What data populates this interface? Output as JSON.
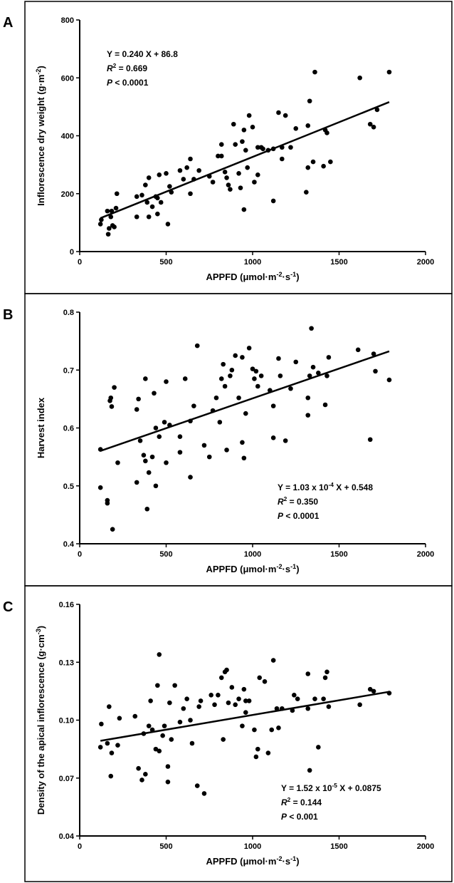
{
  "chart_data": [
    {
      "type": "scatter",
      "panel_label": "A",
      "xlabel": [
        {
          "t": "APPFD (μmol·m"
        },
        {
          "t": "-2",
          "sup": true
        },
        {
          "t": "·s"
        },
        {
          "t": "-1",
          "sup": true
        },
        {
          "t": ")"
        }
      ],
      "ylabel": [
        {
          "t": "Inflorescence dry weight (g·m"
        },
        {
          "t": "-2",
          "sup": true
        },
        {
          "t": ")"
        }
      ],
      "annotations": [
        [
          {
            "t": "Y = 0.240 X + 86.8"
          }
        ],
        [
          {
            "t": "R",
            "italic": true
          },
          {
            "t": "2",
            "sup": true
          },
          {
            "t": " = 0.669"
          }
        ],
        [
          {
            "t": "P",
            "italic": true
          },
          {
            "t": " < 0.0001"
          }
        ]
      ],
      "xlim": [
        0,
        2000
      ],
      "xticks": [
        0,
        500,
        1000,
        1500,
        2000
      ],
      "ylim": [
        0,
        800
      ],
      "yticks": [
        0,
        200,
        400,
        600,
        800
      ],
      "color": "#000000",
      "x": [
        120,
        125,
        160,
        165,
        170,
        180,
        185,
        190,
        200,
        210,
        215,
        330,
        330,
        360,
        380,
        390,
        400,
        400,
        420,
        440,
        450,
        450,
        460,
        470,
        500,
        510,
        520,
        530,
        580,
        600,
        620,
        640,
        640,
        660,
        690,
        750,
        770,
        800,
        820,
        820,
        840,
        850,
        860,
        870,
        890,
        900,
        920,
        930,
        940,
        950,
        950,
        960,
        970,
        980,
        1000,
        1010,
        1030,
        1030,
        1050,
        1060,
        1090,
        1120,
        1120,
        1150,
        1170,
        1170,
        1190,
        1220,
        1250,
        1310,
        1320,
        1320,
        1330,
        1350,
        1360,
        1410,
        1420,
        1430,
        1450,
        1620,
        1680,
        1700,
        1720,
        1790
      ],
      "values": [
        95,
        110,
        140,
        60,
        80,
        120,
        140,
        90,
        85,
        150,
        200,
        190,
        120,
        195,
        230,
        170,
        255,
        120,
        155,
        190,
        130,
        185,
        265,
        170,
        270,
        95,
        225,
        205,
        280,
        250,
        290,
        200,
        320,
        250,
        280,
        260,
        240,
        330,
        330,
        370,
        275,
        255,
        230,
        215,
        440,
        370,
        270,
        220,
        380,
        145,
        420,
        350,
        290,
        470,
        430,
        240,
        265,
        360,
        360,
        355,
        350,
        175,
        355,
        480,
        320,
        360,
        470,
        360,
        425,
        205,
        435,
        290,
        520,
        310,
        620,
        295,
        420,
        410,
        310,
        600,
        440,
        430,
        490,
        620
      ],
      "trendline": {
        "x": [
          120,
          1790
        ],
        "values": [
          115.6,
          516.4
        ]
      }
    },
    {
      "type": "scatter",
      "panel_label": "B",
      "xlabel": [
        {
          "t": "APPFD (μmol·m"
        },
        {
          "t": "-2",
          "sup": true
        },
        {
          "t": "·s"
        },
        {
          "t": "-1",
          "sup": true
        },
        {
          "t": ")"
        }
      ],
      "ylabel": [
        {
          "t": "Harvest index"
        }
      ],
      "annotations": [
        [
          {
            "t": "Y = 1.03 x 10"
          },
          {
            "t": "-4",
            "sup": true
          },
          {
            "t": " X + 0.548"
          }
        ],
        [
          {
            "t": "R",
            "italic": true
          },
          {
            "t": "2",
            "sup": true
          },
          {
            "t": " = 0.350"
          }
        ],
        [
          {
            "t": "P",
            "italic": true
          },
          {
            "t": " < 0.0001"
          }
        ]
      ],
      "xlim": [
        0,
        2000
      ],
      "xticks": [
        0,
        500,
        1000,
        1500,
        2000
      ],
      "ylim": [
        0.4,
        0.8
      ],
      "yticks": [
        0.4,
        0.5,
        0.6,
        0.7,
        0.8
      ],
      "color": "#000000",
      "x": [
        120,
        120,
        160,
        160,
        175,
        180,
        185,
        190,
        200,
        220,
        330,
        330,
        340,
        350,
        370,
        380,
        380,
        390,
        400,
        420,
        430,
        440,
        440,
        460,
        490,
        500,
        500,
        520,
        580,
        580,
        610,
        640,
        640,
        660,
        680,
        720,
        750,
        770,
        790,
        810,
        820,
        830,
        840,
        850,
        870,
        880,
        900,
        920,
        940,
        940,
        950,
        960,
        980,
        1000,
        1010,
        1020,
        1030,
        1050,
        1100,
        1120,
        1120,
        1150,
        1160,
        1190,
        1220,
        1250,
        1320,
        1320,
        1330,
        1340,
        1350,
        1380,
        1420,
        1430,
        1440,
        1610,
        1680,
        1700,
        1710,
        1790
      ],
      "values": [
        0.563,
        0.497,
        0.475,
        0.47,
        0.647,
        0.652,
        0.637,
        0.425,
        0.67,
        0.54,
        0.632,
        0.506,
        0.65,
        0.578,
        0.553,
        0.543,
        0.685,
        0.46,
        0.523,
        0.55,
        0.66,
        0.5,
        0.6,
        0.585,
        0.61,
        0.68,
        0.54,
        0.605,
        0.558,
        0.585,
        0.685,
        0.612,
        0.515,
        0.638,
        0.742,
        0.57,
        0.55,
        0.63,
        0.652,
        0.61,
        0.685,
        0.71,
        0.672,
        0.562,
        0.69,
        0.7,
        0.725,
        0.652,
        0.722,
        0.575,
        0.548,
        0.625,
        0.738,
        0.702,
        0.685,
        0.698,
        0.672,
        0.69,
        0.665,
        0.638,
        0.583,
        0.72,
        0.69,
        0.578,
        0.668,
        0.714,
        0.652,
        0.622,
        0.69,
        0.772,
        0.705,
        0.695,
        0.64,
        0.69,
        0.722,
        0.735,
        0.58,
        0.728,
        0.698,
        0.683
      ],
      "trendline": {
        "x": [
          120,
          1790
        ],
        "values": [
          0.5604,
          0.7324
        ]
      }
    },
    {
      "type": "scatter",
      "panel_label": "C",
      "xlabel": [
        {
          "t": "APPFD (μmol·m"
        },
        {
          "t": "-2",
          "sup": true
        },
        {
          "t": "·s"
        },
        {
          "t": "-1",
          "sup": true
        },
        {
          "t": ")"
        }
      ],
      "ylabel": [
        {
          "t": "Density of the apical inflorescence (g·cm"
        },
        {
          "t": "-3",
          "sup": true
        },
        {
          "t": ")"
        }
      ],
      "annotations": [
        [
          {
            "t": "Y = 1.52 x 10"
          },
          {
            "t": "-5",
            "sup": true
          },
          {
            "t": " X + 0.0875"
          }
        ],
        [
          {
            "t": "R",
            "italic": true
          },
          {
            "t": "2",
            "sup": true
          },
          {
            "t": " = 0.144"
          }
        ],
        [
          {
            "t": "P",
            "italic": true
          },
          {
            "t": " < 0.001"
          }
        ]
      ],
      "xlim": [
        0,
        2000
      ],
      "xticks": [
        0,
        500,
        1000,
        1500,
        2000
      ],
      "ylim": [
        0.04,
        0.16
      ],
      "yticks": [
        0.04,
        0.07,
        {
          "value": 0.1,
          "label": "0.10"
        },
        0.13,
        0.16
      ],
      "color": "#000000",
      "x": [
        120,
        125,
        160,
        170,
        180,
        185,
        220,
        230,
        320,
        340,
        360,
        370,
        380,
        400,
        410,
        420,
        440,
        450,
        460,
        460,
        480,
        490,
        510,
        510,
        520,
        530,
        550,
        580,
        600,
        620,
        640,
        650,
        680,
        690,
        700,
        720,
        760,
        780,
        800,
        820,
        830,
        840,
        850,
        860,
        880,
        900,
        920,
        940,
        950,
        960,
        960,
        980,
        1010,
        1020,
        1030,
        1040,
        1070,
        1090,
        1110,
        1120,
        1140,
        1150,
        1170,
        1230,
        1240,
        1260,
        1320,
        1320,
        1330,
        1360,
        1380,
        1410,
        1420,
        1430,
        1440,
        1620,
        1680,
        1700,
        1790
      ],
      "values": [
        0.086,
        0.098,
        0.088,
        0.107,
        0.071,
        0.083,
        0.087,
        0.101,
        0.102,
        0.075,
        0.069,
        0.093,
        0.072,
        0.097,
        0.11,
        0.095,
        0.085,
        0.118,
        0.084,
        0.134,
        0.092,
        0.097,
        0.068,
        0.076,
        0.109,
        0.09,
        0.118,
        0.099,
        0.106,
        0.111,
        0.1,
        0.088,
        0.066,
        0.107,
        0.11,
        0.062,
        0.113,
        0.108,
        0.113,
        0.122,
        0.09,
        0.125,
        0.126,
        0.109,
        0.117,
        0.108,
        0.111,
        0.097,
        0.116,
        0.11,
        0.104,
        0.11,
        0.095,
        0.081,
        0.085,
        0.122,
        0.12,
        0.083,
        0.095,
        0.131,
        0.106,
        0.096,
        0.106,
        0.105,
        0.113,
        0.111,
        0.106,
        0.124,
        0.074,
        0.111,
        0.086,
        0.111,
        0.122,
        0.125,
        0.107,
        0.108,
        0.116,
        0.115,
        0.114
      ],
      "trendline": {
        "x": [
          120,
          1790
        ],
        "values": [
          0.0893,
          0.1147
        ]
      }
    }
  ]
}
